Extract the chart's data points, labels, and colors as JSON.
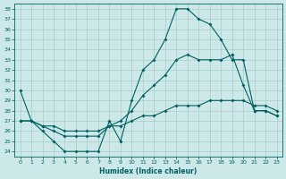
{
  "xlabel": "Humidex (Indice chaleur)",
  "bg_color": "#cce8e8",
  "grid_color": "#aacccc",
  "line_color": "#006060",
  "xlim": [
    -0.5,
    23.5
  ],
  "ylim": [
    23.5,
    38.5
  ],
  "xticks": [
    0,
    1,
    2,
    3,
    4,
    5,
    6,
    7,
    8,
    9,
    10,
    11,
    12,
    13,
    14,
    15,
    16,
    17,
    18,
    19,
    20,
    21,
    22,
    23
  ],
  "yticks": [
    24,
    25,
    26,
    27,
    28,
    29,
    30,
    31,
    32,
    33,
    34,
    35,
    36,
    37,
    38
  ],
  "line1_x": [
    0,
    1,
    2,
    3,
    4,
    5,
    6,
    7,
    8,
    9,
    10,
    11,
    12,
    13,
    14,
    15,
    16,
    17,
    18,
    19,
    20,
    21,
    22,
    23
  ],
  "line1_y": [
    30,
    27,
    26,
    25,
    24,
    24,
    24,
    24,
    27,
    25,
    29,
    32,
    33,
    35,
    38,
    38,
    37,
    36.5,
    35,
    33,
    33,
    28,
    28,
    27.5
  ],
  "line2_x": [
    0,
    1,
    2,
    3,
    4,
    5,
    6,
    7,
    8,
    9,
    10,
    11,
    12,
    13,
    14,
    15,
    16,
    17,
    18,
    19,
    20,
    21,
    22,
    23
  ],
  "line2_y": [
    27,
    27,
    26.5,
    26,
    25.5,
    25.5,
    25.5,
    25.5,
    26.5,
    27,
    28,
    29.5,
    30.5,
    31.5,
    33,
    33.5,
    33,
    33,
    33,
    33.5,
    30.5,
    28,
    28,
    27.5
  ],
  "line3_x": [
    0,
    1,
    2,
    3,
    4,
    5,
    6,
    7,
    8,
    9,
    10,
    11,
    12,
    13,
    14,
    15,
    16,
    17,
    18,
    19,
    20,
    21,
    22,
    23
  ],
  "line3_y": [
    27,
    27,
    26.5,
    26.5,
    26,
    26,
    26,
    26,
    26.5,
    26.5,
    27,
    27.5,
    27.5,
    28,
    28.5,
    28.5,
    28.5,
    29,
    29,
    29,
    29,
    28.5,
    28.5,
    28
  ]
}
